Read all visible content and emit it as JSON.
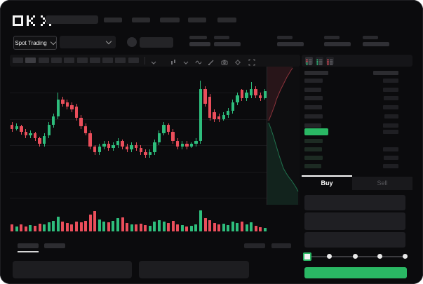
{
  "brand": "OKX",
  "colors": {
    "up_green": "#2ebd7c",
    "down_red": "#ea4e5b",
    "button_green": "#2ab864",
    "placeholder": "#2b2b2e",
    "placeholder_dim": "#222225",
    "bid_row_tint": "#1d2b23",
    "window_bg": "#0b0b0d"
  },
  "market_selector": {
    "label": "Spot Trading"
  },
  "toolbar": {
    "timeframes": {
      "count": 10,
      "active_index": 1
    },
    "icons": [
      "chevron-down",
      "chart-type",
      "chevron-down",
      "wave",
      "pencil",
      "camera",
      "gear",
      "fullscreen"
    ]
  },
  "order_book": {
    "view_modes": [
      "book-both",
      "book-bids",
      "book-asks"
    ],
    "active_view": 0,
    "header": {
      "lw": 34,
      "rw": 36
    },
    "asks": [
      [
        26,
        22
      ],
      [
        24,
        22
      ],
      [
        26,
        21
      ],
      [
        25,
        22
      ],
      [
        26,
        20
      ],
      [
        24,
        22
      ]
    ],
    "last_price_bar": {
      "w": 34,
      "rw": 22
    },
    "bids": [
      [
        26,
        0
      ],
      [
        25,
        22
      ],
      [
        26,
        21
      ],
      [
        24,
        22
      ]
    ]
  },
  "trade_panel": {
    "buy_label": "Buy",
    "sell_label": "Sell",
    "active_tab": "buy",
    "inputs": [
      {
        "y": 278,
        "h": 22
      },
      {
        "y": 303,
        "h": 25
      },
      {
        "y": 331,
        "h": 22
      }
    ],
    "slider": {
      "stops": 5,
      "active_index": 0,
      "stop_x": [
        437,
        469,
        506,
        541,
        577
      ]
    }
  },
  "redacted": {
    "top_nav": [
      {
        "x": 148,
        "w": 26
      },
      {
        "x": 188,
        "w": 26
      },
      {
        "x": 228,
        "w": 28
      },
      {
        "x": 268,
        "w": 26
      },
      {
        "x": 310,
        "w": 27
      }
    ],
    "price_lines": [
      {
        "x": 270,
        "y": 51,
        "w": 25,
        "h": 5
      },
      {
        "x": 270,
        "y": 60,
        "w": 30,
        "h": 6
      }
    ],
    "stats_x": [
      305,
      395,
      462,
      517
    ],
    "chart_tabs": [
      {
        "x": 25,
        "w": 30,
        "active": true
      },
      {
        "x": 63,
        "w": 30,
        "active": false
      }
    ],
    "chart_tab_buttons": [
      {
        "x": 348,
        "w": 30
      },
      {
        "x": 387,
        "w": 28
      }
    ],
    "bottom_panels": [
      {
        "x": 18,
        "w": 170
      },
      {
        "x": 198,
        "w": 157
      }
    ]
  },
  "chart_data": {
    "type": "candlestick",
    "ylim": [
      0,
      100
    ],
    "grid_levels": [
      81,
      62,
      43,
      24,
      5
    ],
    "legend": "none",
    "axis_labels": "hidden",
    "candles": [
      [
        58,
        55,
        60,
        53
      ],
      [
        55,
        57,
        59,
        54
      ],
      [
        57,
        53,
        58,
        51
      ],
      [
        53,
        50,
        55,
        48
      ],
      [
        50,
        52,
        54,
        48
      ],
      [
        52,
        48,
        53,
        46
      ],
      [
        48,
        44,
        49,
        42
      ],
      [
        44,
        50,
        52,
        42
      ],
      [
        50,
        58,
        60,
        48
      ],
      [
        58,
        64,
        66,
        56
      ],
      [
        64,
        76,
        81,
        62
      ],
      [
        76,
        73,
        78,
        71
      ],
      [
        74,
        71,
        76,
        69
      ],
      [
        72,
        69,
        74,
        67
      ],
      [
        71,
        63,
        73,
        61
      ],
      [
        63,
        57,
        65,
        55
      ],
      [
        57,
        52,
        59,
        50
      ],
      [
        52,
        42,
        54,
        40
      ],
      [
        42,
        38,
        43,
        36
      ],
      [
        38,
        42,
        44,
        36
      ],
      [
        42,
        44,
        46,
        40
      ],
      [
        44,
        41,
        46,
        39
      ],
      [
        41,
        43,
        45,
        39
      ],
      [
        43,
        46,
        48,
        41
      ],
      [
        46,
        42,
        47,
        40
      ],
      [
        42,
        40,
        44,
        38
      ],
      [
        40,
        43,
        45,
        38
      ],
      [
        43,
        41,
        45,
        39
      ],
      [
        41,
        38,
        43,
        36
      ],
      [
        38,
        36,
        40,
        34
      ],
      [
        36,
        38,
        40,
        34
      ],
      [
        38,
        45,
        47,
        36
      ],
      [
        45,
        52,
        54,
        43
      ],
      [
        52,
        58,
        60,
        50
      ],
      [
        58,
        53,
        59,
        51
      ],
      [
        53,
        46,
        55,
        44
      ],
      [
        46,
        42,
        48,
        40
      ],
      [
        42,
        44,
        46,
        40
      ],
      [
        44,
        42,
        46,
        40
      ],
      [
        42,
        44,
        45,
        41
      ],
      [
        44,
        46,
        48,
        42
      ],
      [
        46,
        84,
        90,
        44
      ],
      [
        84,
        73,
        86,
        71
      ],
      [
        78,
        63,
        80,
        61
      ],
      [
        67,
        62,
        69,
        60
      ],
      [
        64,
        62,
        66,
        60
      ],
      [
        62,
        65,
        67,
        61
      ],
      [
        65,
        68,
        70,
        63
      ],
      [
        68,
        74,
        76,
        66
      ],
      [
        74,
        79,
        81,
        72
      ],
      [
        83,
        77,
        84,
        75
      ],
      [
        77,
        81,
        83,
        75
      ],
      [
        79,
        84,
        89,
        77
      ],
      [
        84,
        79,
        86,
        77
      ],
      [
        79,
        77,
        81,
        75
      ],
      [
        77,
        82,
        84,
        76
      ]
    ],
    "volume": [
      30,
      22,
      28,
      20,
      26,
      23,
      32,
      28,
      38,
      45,
      62,
      40,
      35,
      30,
      42,
      38,
      45,
      70,
      85,
      50,
      42,
      38,
      45,
      55,
      60,
      35,
      30,
      28,
      32,
      26,
      24,
      40,
      48,
      42,
      36,
      44,
      30,
      26,
      22,
      24,
      30,
      88,
      55,
      48,
      34,
      28,
      32,
      26,
      40,
      35,
      42,
      30,
      38,
      24,
      18,
      14
    ],
    "depth": {
      "panel": {
        "w": 46,
        "h": 197
      },
      "asks_line": [
        [
          2,
          77
        ],
        [
          5,
          70
        ],
        [
          8,
          62
        ],
        [
          11,
          54
        ],
        [
          13,
          47
        ],
        [
          16,
          40
        ],
        [
          19,
          33
        ],
        [
          22,
          27
        ],
        [
          25,
          21
        ],
        [
          28,
          15
        ],
        [
          31,
          10
        ],
        [
          34,
          5
        ],
        [
          36,
          2
        ]
      ],
      "bids_line": [
        [
          2,
          80
        ],
        [
          5,
          88
        ],
        [
          8,
          97
        ],
        [
          11,
          107
        ],
        [
          14,
          117
        ],
        [
          17,
          127
        ],
        [
          20,
          136
        ],
        [
          23,
          145
        ],
        [
          27,
          152
        ],
        [
          31,
          158
        ],
        [
          35,
          163
        ],
        [
          39,
          169
        ],
        [
          42,
          174
        ],
        [
          44,
          178
        ]
      ]
    }
  }
}
